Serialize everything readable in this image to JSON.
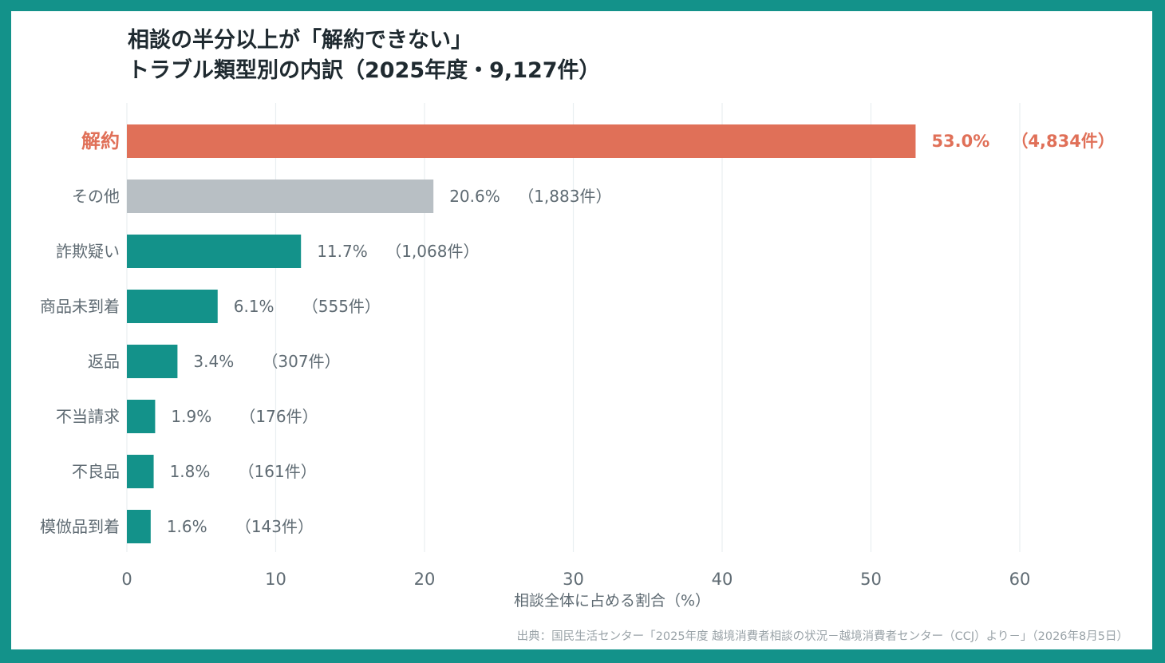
{
  "title": {
    "line1": "相談の半分以上が「解約できない」",
    "line2": "トラブル類型別の内訳（2025年度・9,127件）"
  },
  "source": "出典：国民生活センター「2025年度 越境消費者相談の状況－越境消費者センター（CCJ）より－」（2026年8月5日）",
  "colors": {
    "background": "#13928a",
    "highlight": "#e07058",
    "other": "#b8bfc4",
    "default": "#13928a",
    "label": "#5f6b73"
  },
  "chart_data": {
    "type": "bar",
    "orientation": "horizontal",
    "categories": [
      "解約",
      "その他",
      "詐欺疑い",
      "商品未到着",
      "返品",
      "不当請求",
      "不良品",
      "模倣品到着"
    ],
    "values": [
      53.0,
      20.6,
      11.7,
      6.1,
      3.4,
      1.9,
      1.8,
      1.6
    ],
    "counts": [
      4834,
      1883,
      1068,
      555,
      307,
      176,
      161,
      143
    ],
    "value_labels": [
      "53.0%",
      "20.6%",
      "11.7%",
      "6.1%",
      "3.4%",
      "1.9%",
      "1.8%",
      "1.6%"
    ],
    "count_labels": [
      "（4,834件）",
      "（1,883件）",
      "（1,068件）",
      "（555件）",
      "（307件）",
      "（176件）",
      "（161件）",
      "（143件）"
    ],
    "highlight_category": "解約",
    "muted_category": "その他",
    "xlabel": "相談全体に占める割合（%）",
    "ylabel": "",
    "xlim": [
      0,
      65
    ],
    "xticks": [
      0,
      10,
      20,
      30,
      40,
      50,
      60
    ],
    "grid": "vertical"
  }
}
